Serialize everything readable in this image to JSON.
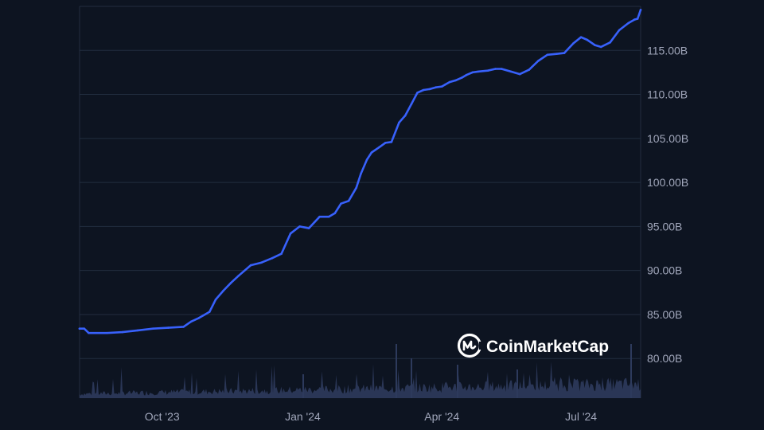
{
  "colors": {
    "background": "#0d1421",
    "grid": "#222d3f",
    "line": "#3861fb",
    "volume": "#2d3a5c",
    "tick_text": "#a1a7bb",
    "watermark": "#ffffff"
  },
  "watermark": {
    "text": "CoinMarketCap",
    "icon": "coinmarketcap-logo-icon"
  },
  "chart_data": {
    "type": "line",
    "x_tick_labels": [
      "Oct '23",
      "Jan '24",
      "Apr '24",
      "Jul '24"
    ],
    "x_ticks": [
      "2023-10-01",
      "2024-01-01",
      "2024-04-01",
      "2024-07-01"
    ],
    "y_tick_labels": [
      "80.00B",
      "85.00B",
      "90.00B",
      "95.00B",
      "100.00B",
      "105.00B",
      "110.00B",
      "115.00B"
    ],
    "y_ticks": [
      80,
      85,
      90,
      95,
      100,
      105,
      110,
      115
    ],
    "ylim": [
      75.5,
      120
    ],
    "xlim": [
      "2023-08-08",
      "2024-08-09"
    ],
    "y_unit": "B",
    "grid": true,
    "series": [
      {
        "x": [
          "2023-08-08",
          "2023-08-11",
          "2023-08-14",
          "2023-08-26",
          "2023-09-05",
          "2023-09-15",
          "2023-09-25",
          "2023-10-05",
          "2023-10-15",
          "2023-10-20",
          "2023-10-25",
          "2023-11-01",
          "2023-11-05",
          "2023-11-10",
          "2023-11-15",
          "2023-11-20",
          "2023-11-28",
          "2023-12-05",
          "2023-12-12",
          "2023-12-18",
          "2023-12-24",
          "2023-12-30",
          "2024-01-05",
          "2024-01-12",
          "2024-01-18",
          "2024-01-22",
          "2024-01-26",
          "2024-01-31",
          "2024-02-05",
          "2024-02-08",
          "2024-02-12",
          "2024-02-15",
          "2024-02-20",
          "2024-02-24",
          "2024-02-28",
          "2024-03-04",
          "2024-03-08",
          "2024-03-12",
          "2024-03-16",
          "2024-03-20",
          "2024-03-24",
          "2024-03-28",
          "2024-04-01",
          "2024-04-03",
          "2024-04-06",
          "2024-04-10",
          "2024-04-14",
          "2024-04-17",
          "2024-04-21",
          "2024-04-25",
          "2024-05-01",
          "2024-05-06",
          "2024-05-10",
          "2024-05-16",
          "2024-05-22",
          "2024-05-28",
          "2024-06-03",
          "2024-06-09",
          "2024-06-15",
          "2024-06-20",
          "2024-06-26",
          "2024-07-01",
          "2024-07-05",
          "2024-07-10",
          "2024-07-14",
          "2024-07-20",
          "2024-07-26",
          "2024-08-01",
          "2024-08-05",
          "2024-08-07",
          "2024-08-09"
        ],
        "y": [
          83.4,
          83.4,
          82.9,
          82.9,
          83.0,
          83.2,
          83.4,
          83.5,
          83.6,
          84.2,
          84.6,
          85.3,
          86.7,
          87.7,
          88.6,
          89.4,
          90.6,
          90.9,
          91.4,
          91.9,
          94.2,
          95.0,
          94.8,
          96.1,
          96.1,
          96.5,
          97.6,
          97.9,
          99.4,
          101.0,
          102.6,
          103.4,
          104.0,
          104.5,
          104.6,
          106.8,
          107.6,
          108.9,
          110.2,
          110.5,
          110.6,
          110.8,
          110.9,
          111.1,
          111.4,
          111.6,
          111.9,
          112.2,
          112.5,
          112.6,
          112.7,
          112.9,
          112.9,
          112.6,
          112.3,
          112.8,
          113.8,
          114.5,
          114.6,
          114.7,
          115.8,
          116.5,
          116.2,
          115.6,
          115.4,
          115.9,
          117.3,
          118.1,
          118.5,
          118.6,
          119.6
        ]
      }
    ]
  }
}
